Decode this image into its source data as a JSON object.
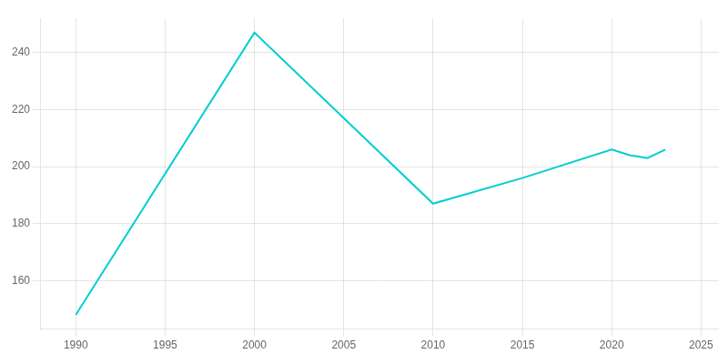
{
  "chart_data": {
    "type": "line",
    "x": [
      1990,
      2000,
      2010,
      2015,
      2020,
      2021,
      2022,
      2023
    ],
    "values": [
      148,
      247,
      187,
      196,
      206,
      204,
      203,
      206
    ],
    "color": "#00CED1",
    "xlim": [
      1988,
      2026
    ],
    "ylim": [
      143,
      252
    ],
    "xticks": [
      1990,
      1995,
      2000,
      2005,
      2010,
      2015,
      2020,
      2025
    ],
    "yticks": [
      160,
      180,
      200,
      220,
      240
    ],
    "grid": true
  }
}
